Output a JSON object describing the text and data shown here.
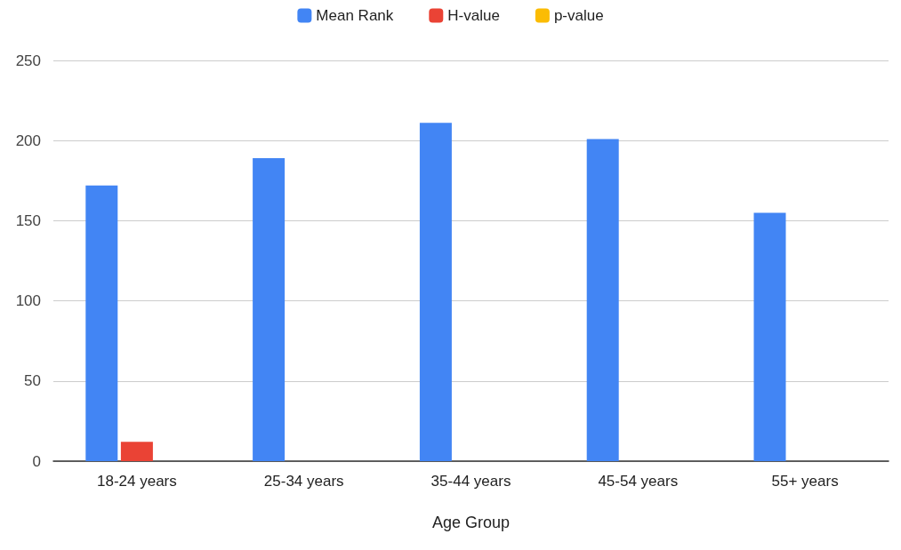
{
  "chart_data": {
    "type": "bar",
    "xlabel": "Age Group",
    "categories": [
      "18-24 years",
      "25-34 years",
      "35-44 years",
      "45-54 years",
      "55+ years"
    ],
    "series": [
      {
        "name": "Mean Rank",
        "color": "#4285f4",
        "values": [
          172,
          189,
          211,
          201,
          155
        ]
      },
      {
        "name": "H-value",
        "color": "#ea4335",
        "values": [
          12,
          null,
          null,
          null,
          null
        ]
      },
      {
        "name": "p-value",
        "color": "#fbbc04",
        "values": [
          0,
          null,
          null,
          null,
          null
        ]
      }
    ],
    "ylim": [
      0,
      250
    ],
    "yticks": [
      0,
      50,
      100,
      150,
      200,
      250
    ],
    "grid": "y",
    "legend": "top"
  }
}
